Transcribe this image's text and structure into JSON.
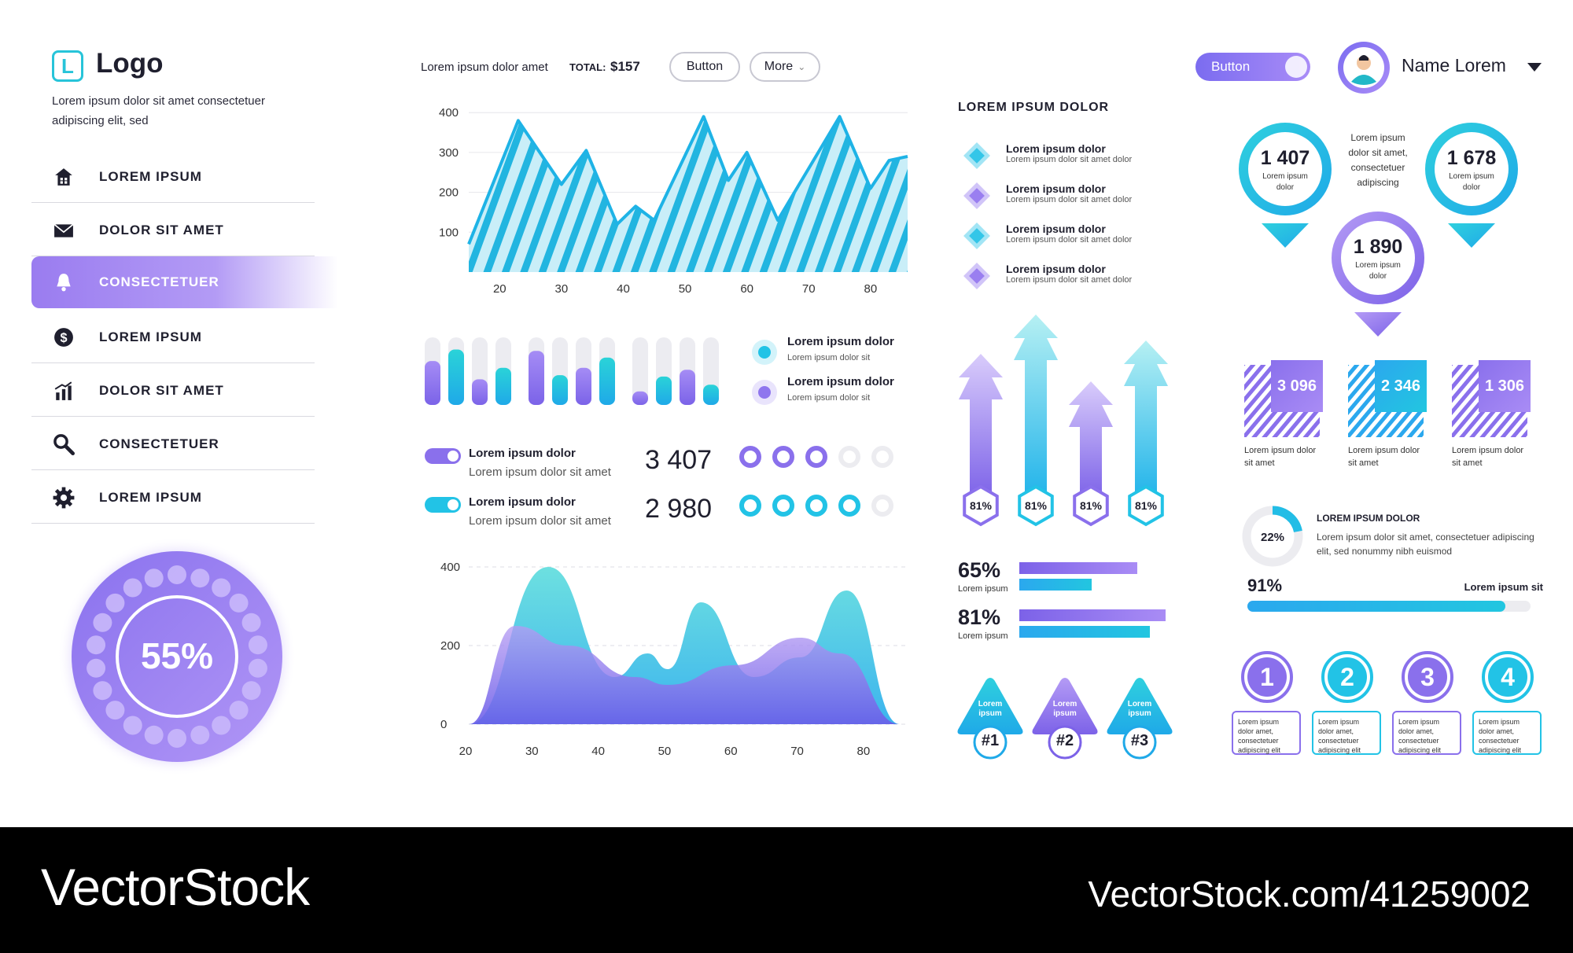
{
  "header": {
    "logo_letter": "L",
    "logo": "Logo",
    "tagline": "Lorem ipsum dolor sit amet consectetuer adipiscing elit, sed",
    "summary_text": "Lorem ipsum dolor amet",
    "total_label": "TOTAL:",
    "total_value": "$157",
    "button_label": "Button",
    "more_label": "More",
    "toggle_button_label": "Button",
    "user_name": "Name Lorem"
  },
  "sidebar": {
    "items": [
      {
        "label": "LOREM IPSUM",
        "icon": "home-icon",
        "active": false
      },
      {
        "label": "DOLOR SIT AMET",
        "icon": "mail-icon",
        "active": false
      },
      {
        "label": "CONSECTETUER",
        "icon": "bell-icon",
        "active": true
      },
      {
        "label": "LOREM IPSUM",
        "icon": "dollar-icon",
        "active": false
      },
      {
        "label": "DOLOR SIT AMET",
        "icon": "bar-chart-icon",
        "active": false
      },
      {
        "label": "CONSECTETUER",
        "icon": "search-icon",
        "active": false
      },
      {
        "label": "LOREM IPSUM",
        "icon": "gear-icon",
        "active": false
      }
    ],
    "gauge_value": "55%"
  },
  "colors": {
    "purple": "#8b6cf0",
    "cyan": "#22c3e6",
    "dark": "#1f1f2e"
  },
  "chart_data": [
    {
      "type": "area",
      "x_ticks": [
        "20",
        "30",
        "40",
        "50",
        "60",
        "70",
        "80"
      ],
      "y_ticks": [
        "400",
        "300",
        "200",
        "100"
      ],
      "x": [
        15,
        23,
        30,
        34,
        39,
        42,
        45,
        53,
        57,
        60,
        65,
        75,
        80,
        83,
        86
      ],
      "values": [
        70,
        380,
        220,
        305,
        120,
        165,
        130,
        390,
        230,
        300,
        130,
        390,
        210,
        280,
        290
      ],
      "xlim": [
        15,
        86
      ],
      "ylim": [
        0,
        430
      ]
    },
    {
      "type": "bar",
      "groups": [
        {
          "values": [
            0.65,
            0.82,
            0.38,
            0.55
          ]
        },
        {
          "values": [
            0.8,
            0.44,
            0.55,
            0.7
          ]
        },
        {
          "values": [
            0.2,
            0.42,
            0.52,
            0.3
          ]
        }
      ]
    },
    {
      "type": "area",
      "x_ticks": [
        "20",
        "30",
        "40",
        "50",
        "60",
        "70",
        "80"
      ],
      "y_ticks": [
        "400",
        "200",
        "0"
      ],
      "series": [
        {
          "x": [
            20,
            32,
            42,
            47,
            50,
            55,
            63,
            70,
            77,
            85
          ],
          "values": [
            0,
            400,
            120,
            180,
            140,
            310,
            120,
            170,
            340,
            0
          ]
        },
        {
          "x": [
            20,
            27,
            35,
            45,
            50,
            60,
            70,
            76,
            85
          ],
          "values": [
            0,
            250,
            200,
            120,
            100,
            150,
            220,
            180,
            0
          ]
        }
      ],
      "xlim": [
        20,
        85
      ],
      "ylim": [
        0,
        400
      ]
    }
  ],
  "legend_small": [
    {
      "title": "Lorem ipsum dolor",
      "sub": "Lorem ipsum dolor sit"
    },
    {
      "title": "Lorem ipsum dolor",
      "sub": "Lorem ipsum dolor sit"
    }
  ],
  "toggle_rows": [
    {
      "title": "Lorem ipsum dolor",
      "sub": "Lorem ipsum dolor sit amet",
      "value": "3 407",
      "filled": 3,
      "total": 5
    },
    {
      "title": "Lorem ipsum dolor",
      "sub": "Lorem ipsum dolor sit amet",
      "value": "2 980",
      "filled": 4,
      "total": 5
    }
  ],
  "list_section": {
    "title": "LOREM IPSUM DOLOR",
    "items": [
      {
        "title": "Lorem ipsum dolor",
        "sub": "Lorem ipsum dolor sit amet dolor"
      },
      {
        "title": "Lorem ipsum dolor",
        "sub": "Lorem ipsum dolor sit amet dolor"
      },
      {
        "title": "Lorem ipsum dolor",
        "sub": "Lorem ipsum dolor sit amet dolor"
      },
      {
        "title": "Lorem ipsum dolor",
        "sub": "Lorem ipsum dolor sit amet dolor"
      }
    ]
  },
  "arrows": [
    {
      "pct": "81%"
    },
    {
      "pct": "81%"
    },
    {
      "pct": "81%"
    },
    {
      "pct": "81%"
    }
  ],
  "hbars": [
    {
      "pct": "65%",
      "label": "Lorem ipsum",
      "v1": 0.65,
      "v2": 0.4
    },
    {
      "pct": "81%",
      "label": "Lorem ipsum",
      "v1": 0.81,
      "v2": 0.72
    }
  ],
  "triangles": [
    {
      "text": "Lorem ipsum",
      "num": "#1"
    },
    {
      "text": "Lorem ipsum",
      "num": "#2"
    },
    {
      "text": "Lorem ipsum",
      "num": "#3"
    }
  ],
  "pins": [
    {
      "value": "1 407",
      "sub": "Lorem ipsum dolor"
    },
    {
      "value": "1 678",
      "sub": "Lorem ipsum dolor"
    },
    {
      "value": "1 890",
      "sub": "Lorem ipsum dolor"
    }
  ],
  "pins_text": "Lorem ipsum dolor sit amet, consectetuer adipiscing",
  "squares": [
    {
      "value": "3 096",
      "sub": "Lorem ipsum dolor sit amet"
    },
    {
      "value": "2 346",
      "sub": "Lorem ipsum dolor sit amet"
    },
    {
      "value": "1 306",
      "sub": "Lorem ipsum dolor sit amet"
    }
  ],
  "donut": {
    "pct": "22%",
    "value": 0.22,
    "title": "LOREM IPSUM DOLOR",
    "text": "Lorem ipsum dolor sit amet, consectetuer adipiscing elit, sed nonummy nibh euismod"
  },
  "progress": {
    "pct": "91%",
    "value": 0.91,
    "label": "Lorem ipsum sit"
  },
  "steps": [
    {
      "num": "1",
      "text": "Lorem ipsum dolor amet, consectetuer adipiscing elit"
    },
    {
      "num": "2",
      "text": "Lorem ipsum dolor amet, consectetuer adipiscing elit"
    },
    {
      "num": "3",
      "text": "Lorem ipsum dolor amet, consectetuer adipiscing elit"
    },
    {
      "num": "4",
      "text": "Lorem ipsum dolor amet, consectetuer adipiscing elit"
    }
  ],
  "footer": {
    "brand": "VectorStock",
    "url": "VectorStock.com/41259002"
  }
}
